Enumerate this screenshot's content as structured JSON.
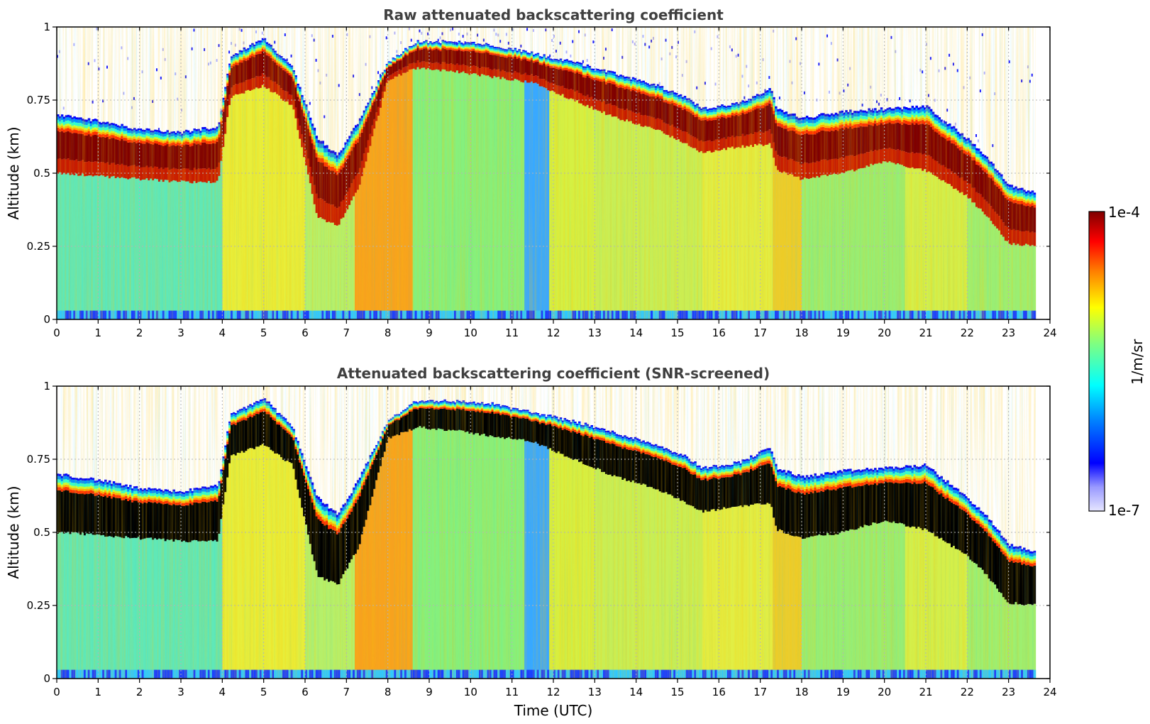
{
  "chart_data": [
    {
      "type": "heatmap",
      "title": "Raw attenuated backscattering coefficient",
      "xlabel": "",
      "ylabel": "Altitude (km)",
      "xlim": [
        0,
        24
      ],
      "ylim": [
        0,
        1
      ],
      "x_ticks": [
        0,
        1,
        2,
        3,
        4,
        5,
        6,
        7,
        8,
        9,
        10,
        11,
        12,
        13,
        14,
        15,
        16,
        17,
        18,
        19,
        20,
        21,
        22,
        23,
        24
      ],
      "y_ticks": [
        "0",
        "0.25",
        "0.5",
        "0.75",
        "1"
      ],
      "grid": true,
      "screened": false,
      "layer_top_km": {
        "time_utc": [
          0,
          1,
          2,
          3,
          3.9,
          4.2,
          5,
          5.7,
          6.3,
          6.8,
          7.3,
          8,
          8.7,
          9.5,
          10.5,
          11.5,
          12.5,
          13.5,
          14.5,
          15.2,
          15.6,
          16.5,
          17.25,
          17.4,
          18,
          19,
          20,
          21,
          22,
          22.5,
          23,
          23.7
        ],
        "altitude_km": [
          0.7,
          0.68,
          0.65,
          0.64,
          0.66,
          0.9,
          0.96,
          0.86,
          0.62,
          0.56,
          0.68,
          0.88,
          0.95,
          0.95,
          0.94,
          0.91,
          0.88,
          0.84,
          0.8,
          0.76,
          0.72,
          0.74,
          0.79,
          0.72,
          0.69,
          0.71,
          0.72,
          0.73,
          0.62,
          0.55,
          0.46,
          0.43
        ]
      },
      "layer_base_km": {
        "time_utc": [
          0,
          1,
          2,
          3,
          3.9,
          4.2,
          5,
          5.7,
          6.3,
          6.8,
          7.3,
          8,
          8.7,
          9.5,
          10.5,
          11.5,
          12.5,
          13.5,
          14.5,
          15.2,
          15.6,
          16.5,
          17.25,
          17.4,
          18,
          19,
          20,
          21,
          22,
          22.5,
          23,
          23.7
        ],
        "altitude_km": [
          0.5,
          0.49,
          0.48,
          0.47,
          0.47,
          0.76,
          0.8,
          0.73,
          0.35,
          0.32,
          0.45,
          0.82,
          0.86,
          0.85,
          0.83,
          0.81,
          0.75,
          0.69,
          0.65,
          0.6,
          0.57,
          0.59,
          0.6,
          0.51,
          0.48,
          0.5,
          0.54,
          0.51,
          0.42,
          0.35,
          0.26,
          0.25
        ]
      }
    },
    {
      "type": "heatmap",
      "title": "Attenuated backscattering coefficient (SNR-screened)",
      "xlabel": "Time (UTC)",
      "ylabel": "Altitude (km)",
      "xlim": [
        0,
        24
      ],
      "ylim": [
        0,
        1
      ],
      "x_ticks": [
        0,
        1,
        2,
        3,
        4,
        5,
        6,
        7,
        8,
        9,
        10,
        11,
        12,
        13,
        14,
        15,
        16,
        17,
        18,
        19,
        20,
        21,
        22,
        23,
        24
      ],
      "y_ticks": [
        "0",
        "0.25",
        "0.5",
        "0.75",
        "1"
      ],
      "grid": true,
      "screened": true
    }
  ],
  "colorbar": {
    "max_label": "1e-4",
    "min_label": "1e-7",
    "unit_label": "1/m/sr",
    "scale": "log",
    "range": [
      1e-07,
      0.0001
    ]
  },
  "colors": {
    "cloud_core": "#800000",
    "screened_core": "#000000",
    "grid": "#b4b4b4",
    "title": "#404040"
  }
}
